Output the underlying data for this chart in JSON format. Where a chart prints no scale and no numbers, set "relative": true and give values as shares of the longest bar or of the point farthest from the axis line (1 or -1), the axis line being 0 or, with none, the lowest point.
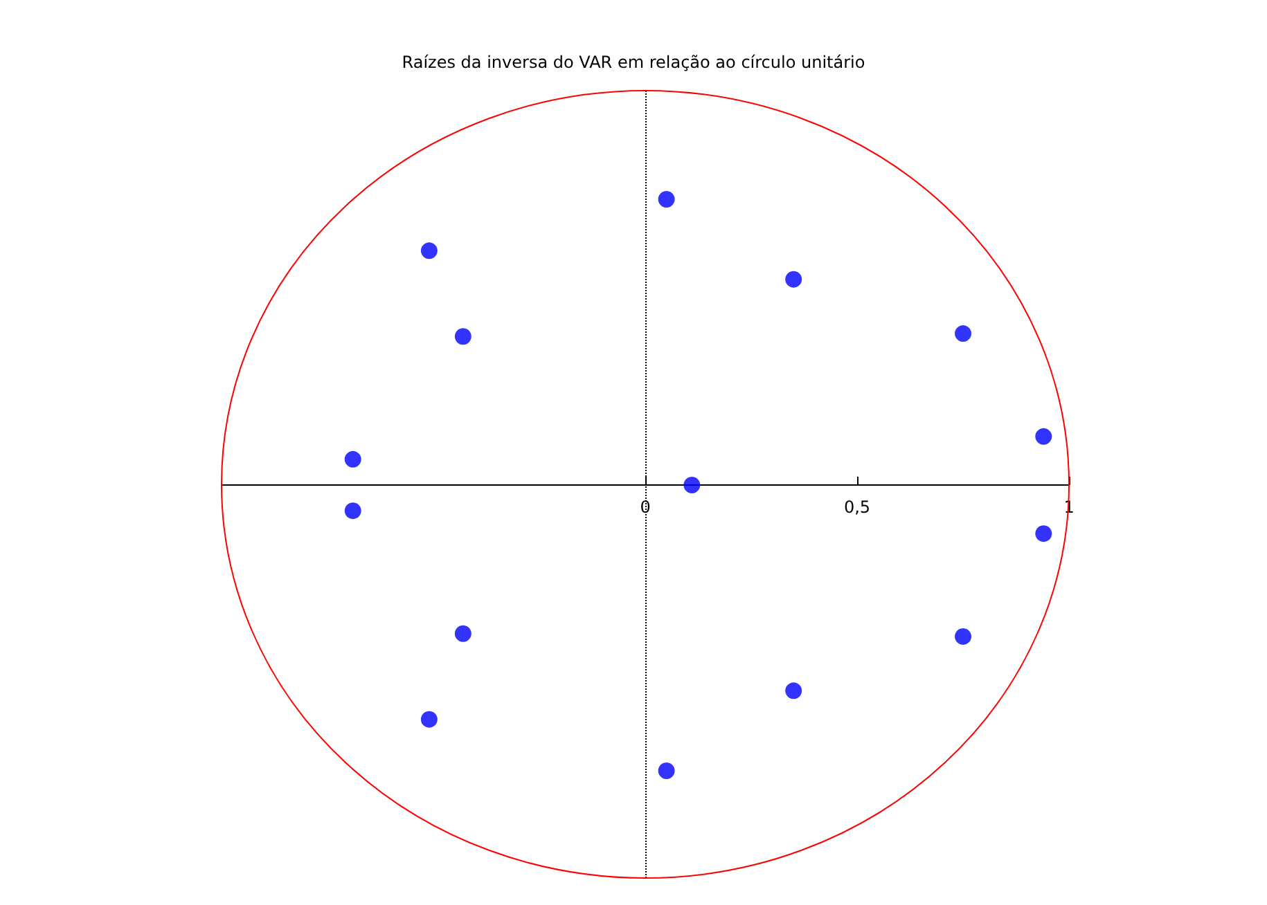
{
  "chart_data": {
    "type": "scatter",
    "title": "Raízes da inversa do VAR em relação ao círculo unitário",
    "xlim": [
      -1,
      1
    ],
    "xticks": [
      0,
      {
        "value": 0.5,
        "label": "0,5"
      },
      1
    ],
    "relative": true,
    "tick_labels": "x",
    "grid": false,
    "marker": "circle",
    "ref_lines": [
      {
        "axis": "x",
        "value": 0,
        "line_style": "dotted",
        "color": "#000000"
      }
    ],
    "series": [
      {
        "color": "#0000ff",
        "x": [
          0.05,
          0.35,
          0.75,
          0.94,
          0.11,
          0.94,
          0.75,
          0.35,
          0.05,
          -0.51,
          -0.43,
          -0.69,
          -0.69,
          -0.43,
          -0.51
        ],
        "values": [
          1,
          0.72,
          0.53,
          0.17,
          0,
          -0.17,
          -0.53,
          -0.72,
          -1,
          0.82,
          0.52,
          0.09,
          -0.09,
          -0.52,
          -0.82
        ]
      }
    ]
  }
}
